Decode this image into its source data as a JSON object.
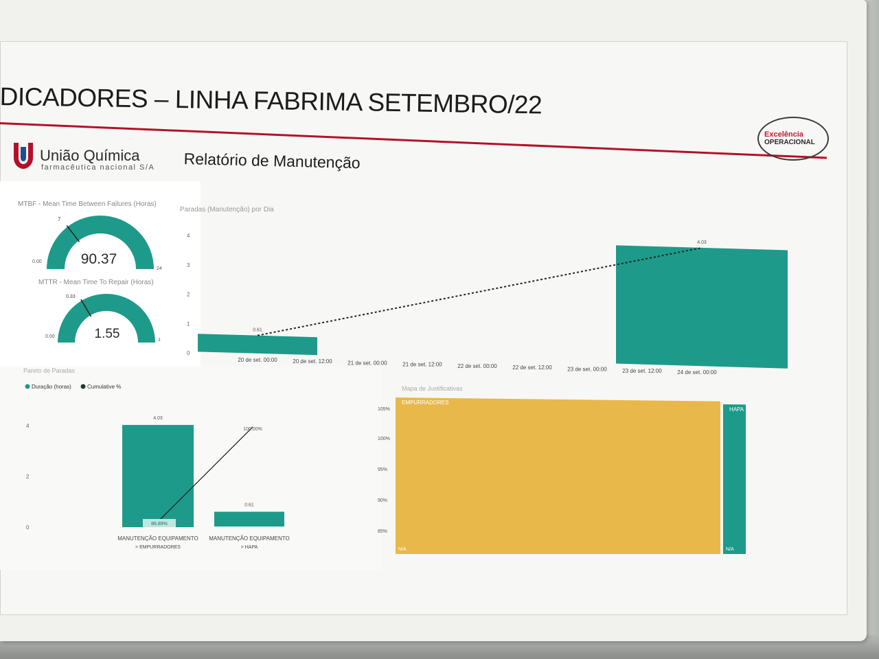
{
  "header": {
    "title": "DICADORES – LINHA FABRIMA SETEMBRO/22"
  },
  "brand": {
    "name": "União Química",
    "sub": "farmacêutica nacional S/A"
  },
  "report_title": "Relatório de Manutenção",
  "excellence_logo": {
    "line1": "Excelência",
    "line2": "OPERACIONAL"
  },
  "colors": {
    "teal": "#1e9a8a",
    "yellow": "#e9b84a",
    "red": "#b3112a"
  },
  "chart_data": [
    {
      "type": "gauge",
      "title": "MTBF - Mean Time Between Failures (Horas)",
      "value": 90.37,
      "min_label": "0.00",
      "max_label": "24",
      "target_label": "7",
      "min": 0,
      "max": 24,
      "target": 7
    },
    {
      "type": "gauge",
      "title": "MTTR - Mean Time To Repair (Horas)",
      "value": 1.55,
      "min_label": "0.00",
      "max_label": "1",
      "target_label": "0.33",
      "min": 0,
      "max": 1,
      "target": 0.33
    },
    {
      "type": "bar",
      "title": "Paradas (Manutenção) por Dia",
      "categories": [
        "20 de set. 00:00",
        "20 de set. 12:00",
        "21 de set. 00:00",
        "21 de set. 12:00",
        "22 de set. 00:00",
        "22 de set. 12:00",
        "23 de set. 00:00",
        "23 de set. 12:00",
        "24 de set. 00:00"
      ],
      "bars": [
        {
          "from": "20 de set. 00:00",
          "to": "20 de set. 12:00",
          "value": 0.61,
          "label": "0.61"
        },
        {
          "from": "23 de set. 12:00",
          "to": "24 de set. 00:00",
          "value": 4.03,
          "label": "4.03"
        }
      ],
      "yticks": [
        "0",
        "1",
        "2",
        "3",
        "4"
      ],
      "ylim": [
        0,
        4
      ],
      "trend_line": "dotted"
    },
    {
      "type": "bar",
      "title": "Pareto de Paradas",
      "legend": [
        "Duração (horas)",
        "Cumulative %"
      ],
      "categories": [
        {
          "line1": "MANUTENÇÃO EQUIPAMENTO",
          "line2": "> EMPURRADORES"
        },
        {
          "line1": "MANUTENÇÃO EQUIPAMENTO",
          "line2": "> HAPA"
        }
      ],
      "values": [
        4.03,
        0.61
      ],
      "value_labels": [
        "4.03",
        "0.61"
      ],
      "cumulative": [
        86.89,
        100.0
      ],
      "cumulative_labels": [
        "86.89%",
        "100.00%"
      ],
      "yticks": [
        "0",
        "2",
        "4"
      ],
      "ylim": [
        0,
        4.6
      ]
    },
    {
      "type": "treemap",
      "title": "Mapa de Justificativas",
      "items": [
        {
          "name": "EMPURRADORES",
          "value": 4.03,
          "sub": "N/A"
        },
        {
          "name": "HAPA",
          "value": 0.61,
          "sub": "N/A"
        }
      ],
      "yticks": [
        "105%",
        "100%",
        "95%",
        "90%",
        "85%"
      ]
    }
  ]
}
